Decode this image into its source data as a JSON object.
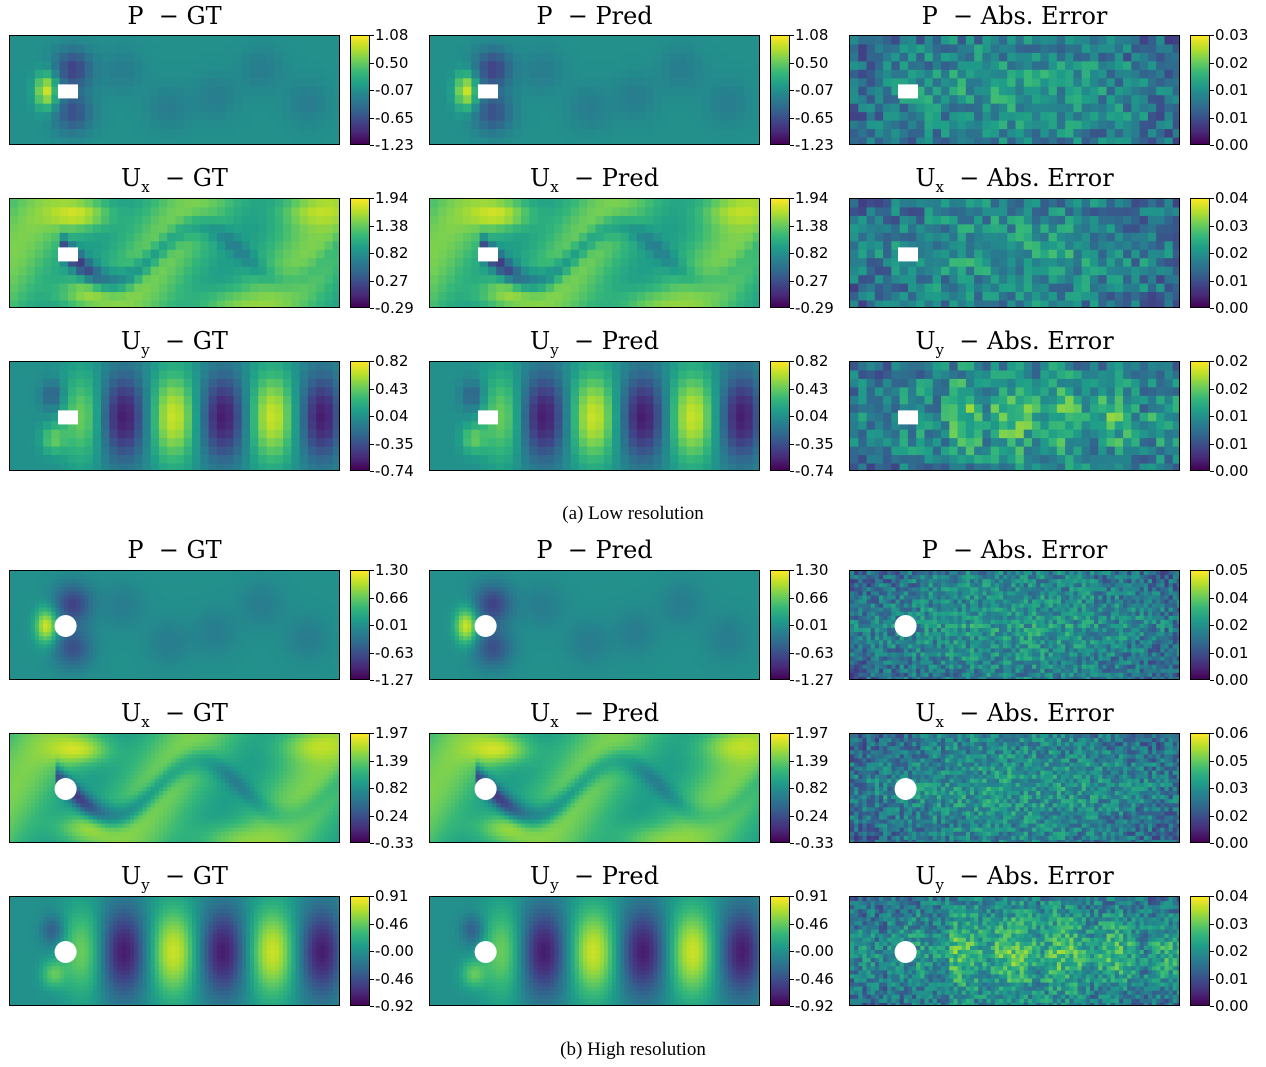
{
  "captions": {
    "low": "(a) Low resolution",
    "high": "(b) High resolution"
  },
  "chart_data": [
    {
      "type": "heatmap",
      "section": "low",
      "variable": "P",
      "sub": "",
      "suffix": " − GT",
      "colorbar_ticks": [
        "1.08",
        "0.50",
        "-0.07",
        "-0.65",
        "-1.23"
      ],
      "colormap": "viridis"
    },
    {
      "type": "heatmap",
      "section": "low",
      "variable": "P",
      "sub": "",
      "suffix": " − Pred",
      "colorbar_ticks": [
        "1.08",
        "0.50",
        "-0.07",
        "-0.65",
        "-1.23"
      ],
      "colormap": "viridis"
    },
    {
      "type": "heatmap",
      "section": "low",
      "variable": "P",
      "sub": "",
      "suffix": " − Abs. Error",
      "colorbar_ticks": [
        "0.03",
        "0.02",
        "0.01",
        "0.01",
        "0.00"
      ],
      "colormap": "viridis"
    },
    {
      "type": "heatmap",
      "section": "low",
      "variable": "U",
      "sub": "x",
      "suffix": " − GT",
      "colorbar_ticks": [
        "1.94",
        "1.38",
        "0.82",
        "0.27",
        "-0.29"
      ],
      "colormap": "viridis"
    },
    {
      "type": "heatmap",
      "section": "low",
      "variable": "U",
      "sub": "x",
      "suffix": " − Pred",
      "colorbar_ticks": [
        "1.94",
        "1.38",
        "0.82",
        "0.27",
        "-0.29"
      ],
      "colormap": "viridis"
    },
    {
      "type": "heatmap",
      "section": "low",
      "variable": "U",
      "sub": "x",
      "suffix": " − Abs. Error",
      "colorbar_ticks": [
        "0.04",
        "0.03",
        "0.02",
        "0.01",
        "0.00"
      ],
      "colormap": "viridis"
    },
    {
      "type": "heatmap",
      "section": "low",
      "variable": "U",
      "sub": "y",
      "suffix": " − GT",
      "colorbar_ticks": [
        "0.82",
        "0.43",
        "0.04",
        "-0.35",
        "-0.74"
      ],
      "colormap": "viridis"
    },
    {
      "type": "heatmap",
      "section": "low",
      "variable": "U",
      "sub": "y",
      "suffix": " − Pred",
      "colorbar_ticks": [
        "0.82",
        "0.43",
        "0.04",
        "-0.35",
        "-0.74"
      ],
      "colormap": "viridis"
    },
    {
      "type": "heatmap",
      "section": "low",
      "variable": "U",
      "sub": "y",
      "suffix": " − Abs. Error",
      "colorbar_ticks": [
        "0.02",
        "0.02",
        "0.01",
        "0.01",
        "0.00"
      ],
      "colormap": "viridis"
    },
    {
      "type": "heatmap",
      "section": "high",
      "variable": "P",
      "sub": "",
      "suffix": " − GT",
      "colorbar_ticks": [
        "1.30",
        "0.66",
        "0.01",
        "-0.63",
        "-1.27"
      ],
      "colormap": "viridis"
    },
    {
      "type": "heatmap",
      "section": "high",
      "variable": "P",
      "sub": "",
      "suffix": " − Pred",
      "colorbar_ticks": [
        "1.30",
        "0.66",
        "0.01",
        "-0.63",
        "-1.27"
      ],
      "colormap": "viridis"
    },
    {
      "type": "heatmap",
      "section": "high",
      "variable": "P",
      "sub": "",
      "suffix": " − Abs. Error",
      "colorbar_ticks": [
        "0.05",
        "0.04",
        "0.02",
        "0.01",
        "0.00"
      ],
      "colormap": "viridis"
    },
    {
      "type": "heatmap",
      "section": "high",
      "variable": "U",
      "sub": "x",
      "suffix": " − GT",
      "colorbar_ticks": [
        "1.97",
        "1.39",
        "0.82",
        "0.24",
        "-0.33"
      ],
      "colormap": "viridis"
    },
    {
      "type": "heatmap",
      "section": "high",
      "variable": "U",
      "sub": "x",
      "suffix": " − Pred",
      "colorbar_ticks": [
        "1.97",
        "1.39",
        "0.82",
        "0.24",
        "-0.33"
      ],
      "colormap": "viridis"
    },
    {
      "type": "heatmap",
      "section": "high",
      "variable": "U",
      "sub": "x",
      "suffix": " − Abs. Error",
      "colorbar_ticks": [
        "0.06",
        "0.05",
        "0.03",
        "0.02",
        "0.00"
      ],
      "colormap": "viridis"
    },
    {
      "type": "heatmap",
      "section": "high",
      "variable": "U",
      "sub": "y",
      "suffix": " − GT",
      "colorbar_ticks": [
        "0.91",
        "0.46",
        "-0.00",
        "-0.46",
        "-0.92"
      ],
      "colormap": "viridis"
    },
    {
      "type": "heatmap",
      "section": "high",
      "variable": "U",
      "sub": "y",
      "suffix": " − Pred",
      "colorbar_ticks": [
        "0.91",
        "0.46",
        "-0.00",
        "-0.46",
        "-0.92"
      ],
      "colormap": "viridis"
    },
    {
      "type": "heatmap",
      "section": "high",
      "variable": "U",
      "sub": "y",
      "suffix": " − Abs. Error",
      "colorbar_ticks": [
        "0.04",
        "0.03",
        "0.02",
        "0.01",
        "0.00"
      ],
      "colormap": "viridis"
    }
  ]
}
